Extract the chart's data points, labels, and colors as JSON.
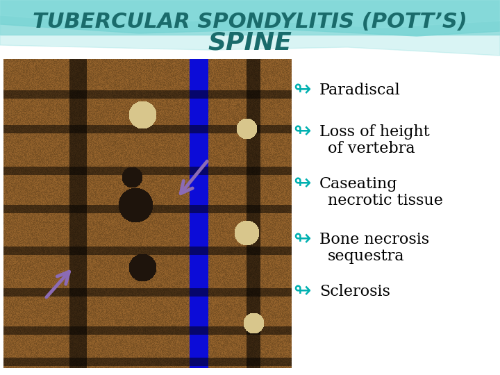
{
  "title_line1": "TUBERCULAR SPONDYLITIS (POTT’S)",
  "title_line2": "SPINE",
  "title_color": "#1a6b6b",
  "title_fontsize": 22,
  "subtitle_fontsize": 26,
  "bg_color": "#ffffff",
  "bullet_color": "#00b0b0",
  "text_color": "#000000",
  "text_fontsize": 16,
  "arrow_color": "#8b6bb5",
  "bullets": [
    {
      "line1": "Paradiscal",
      "line2": ""
    },
    {
      "line1": "Loss of height",
      "line2": "of vertebra"
    },
    {
      "line1": "Caseating",
      "line2": "necrotic tissue"
    },
    {
      "line1": "Bone necrosis",
      "line2": "sequestra"
    },
    {
      "line1": "Sclerosis",
      "line2": ""
    }
  ]
}
